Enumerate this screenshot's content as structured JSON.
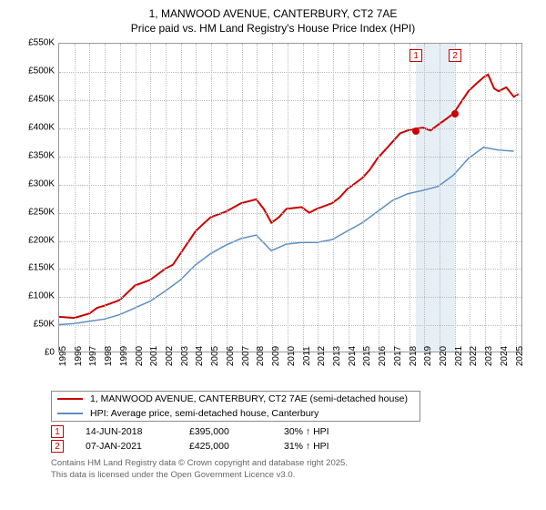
{
  "chart": {
    "type": "line",
    "title_line1": "1, MANWOOD AVENUE, CANTERBURY, CT2 7AE",
    "title_line2": "Price paid vs. HM Land Registry's House Price Index (HPI)",
    "title_fontsize": 12,
    "background_color": "#ffffff",
    "grid_color": "#bbbbbb",
    "border_color": "#999999",
    "ylim": [
      0,
      550000
    ],
    "ytick_step": 50000,
    "yticks": [
      "£0",
      "£50K",
      "£100K",
      "£150K",
      "£200K",
      "£250K",
      "£300K",
      "£350K",
      "£400K",
      "£450K",
      "£500K",
      "£550K"
    ],
    "xlim": [
      1995,
      2025.5
    ],
    "xticks": [
      1995,
      1996,
      1997,
      1998,
      1999,
      2000,
      2001,
      2002,
      2003,
      2004,
      2005,
      2006,
      2007,
      2008,
      2009,
      2010,
      2011,
      2012,
      2013,
      2014,
      2015,
      2016,
      2017,
      2018,
      2019,
      2020,
      2021,
      2022,
      2023,
      2024,
      2025
    ],
    "label_fontsize": 10,
    "series": [
      {
        "name": "price_paid",
        "label": "1, MANWOOD AVENUE, CANTERBURY, CT2 7AE (semi-detached house)",
        "color": "#cc0000",
        "line_width": 2,
        "data": [
          [
            1995,
            62000
          ],
          [
            1996,
            60000
          ],
          [
            1997,
            68000
          ],
          [
            1997.5,
            78000
          ],
          [
            1998,
            82000
          ],
          [
            1999,
            92000
          ],
          [
            1999.5,
            105000
          ],
          [
            2000,
            118000
          ],
          [
            2001,
            128000
          ],
          [
            2002,
            148000
          ],
          [
            2002.5,
            155000
          ],
          [
            2003,
            175000
          ],
          [
            2003.5,
            195000
          ],
          [
            2004,
            215000
          ],
          [
            2004.5,
            228000
          ],
          [
            2005,
            240000
          ],
          [
            2006,
            250000
          ],
          [
            2007,
            265000
          ],
          [
            2008,
            272000
          ],
          [
            2008.5,
            255000
          ],
          [
            2009,
            230000
          ],
          [
            2009.5,
            240000
          ],
          [
            2010,
            255000
          ],
          [
            2011,
            258000
          ],
          [
            2011.5,
            248000
          ],
          [
            2012,
            255000
          ],
          [
            2013,
            265000
          ],
          [
            2013.5,
            275000
          ],
          [
            2014,
            290000
          ],
          [
            2015,
            310000
          ],
          [
            2015.5,
            325000
          ],
          [
            2016,
            345000
          ],
          [
            2016.5,
            360000
          ],
          [
            2017,
            375000
          ],
          [
            2017.5,
            390000
          ],
          [
            2018,
            395000
          ],
          [
            2018.5,
            398000
          ],
          [
            2019,
            400000
          ],
          [
            2019.5,
            395000
          ],
          [
            2020,
            405000
          ],
          [
            2020.5,
            415000
          ],
          [
            2021,
            425000
          ],
          [
            2021.5,
            445000
          ],
          [
            2022,
            465000
          ],
          [
            2022.5,
            478000
          ],
          [
            2023,
            490000
          ],
          [
            2023.3,
            495000
          ],
          [
            2023.7,
            470000
          ],
          [
            2024,
            465000
          ],
          [
            2024.5,
            472000
          ],
          [
            2025,
            455000
          ],
          [
            2025.3,
            460000
          ]
        ]
      },
      {
        "name": "hpi",
        "label": "HPI: Average price, semi-detached house, Canterbury",
        "color": "#5b8ec4",
        "line_width": 1.5,
        "data": [
          [
            1995,
            48000
          ],
          [
            1996,
            50000
          ],
          [
            1997,
            54000
          ],
          [
            1998,
            58000
          ],
          [
            1999,
            66000
          ],
          [
            2000,
            78000
          ],
          [
            2001,
            90000
          ],
          [
            2002,
            108000
          ],
          [
            2003,
            128000
          ],
          [
            2004,
            155000
          ],
          [
            2005,
            175000
          ],
          [
            2006,
            190000
          ],
          [
            2007,
            202000
          ],
          [
            2008,
            208000
          ],
          [
            2009,
            180000
          ],
          [
            2010,
            192000
          ],
          [
            2011,
            195000
          ],
          [
            2012,
            195000
          ],
          [
            2013,
            200000
          ],
          [
            2014,
            215000
          ],
          [
            2015,
            230000
          ],
          [
            2016,
            250000
          ],
          [
            2017,
            270000
          ],
          [
            2018,
            282000
          ],
          [
            2019,
            288000
          ],
          [
            2020,
            295000
          ],
          [
            2021,
            315000
          ],
          [
            2022,
            345000
          ],
          [
            2023,
            365000
          ],
          [
            2024,
            360000
          ],
          [
            2025,
            358000
          ]
        ]
      }
    ],
    "markers": [
      {
        "id": "1",
        "x": 2018.45,
        "band_to": 2021.02,
        "y": 395000,
        "color": "#cc0000"
      },
      {
        "id": "2",
        "x": 2021.02,
        "y": 425000,
        "color": "#cc0000"
      }
    ],
    "marker_band_color": "#e6eef6"
  },
  "legend": {
    "rows": [
      {
        "color": "#cc0000",
        "label": "1, MANWOOD AVENUE, CANTERBURY, CT2 7AE (semi-detached house)"
      },
      {
        "color": "#5b8ec4",
        "label": "HPI: Average price, semi-detached house, Canterbury"
      }
    ]
  },
  "sales": [
    {
      "id": "1",
      "color": "#cc0000",
      "date": "14-JUN-2018",
      "price": "£395,000",
      "vs_hpi": "30% ↑ HPI"
    },
    {
      "id": "2",
      "color": "#cc0000",
      "date": "07-JAN-2021",
      "price": "£425,000",
      "vs_hpi": "31% ↑ HPI"
    }
  ],
  "footer": {
    "line1": "Contains HM Land Registry data © Crown copyright and database right 2025.",
    "line2": "This data is licensed under the Open Government Licence v3.0."
  }
}
